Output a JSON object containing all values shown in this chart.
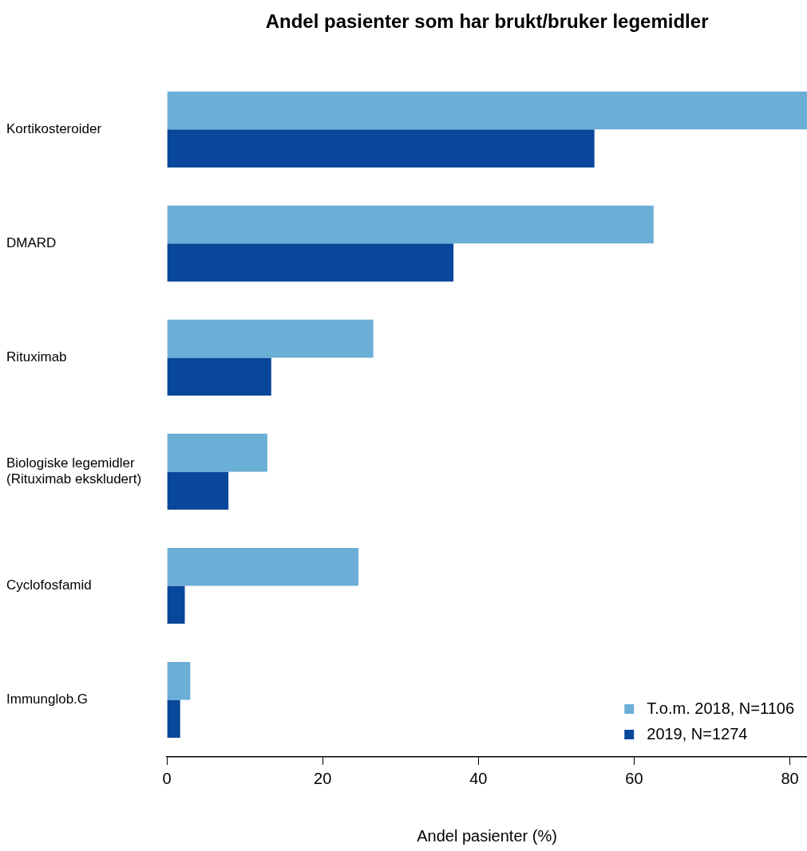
{
  "chart_data": {
    "type": "bar",
    "orientation": "horizontal",
    "title": "Andel pasienter som har brukt/bruker legemidler",
    "xlabel": "Andel pasienter (%)",
    "categories": [
      "Kortikosteroider",
      "DMARD",
      "Rituximab",
      "Biologiske legemidler \n(Rituximab ekskludert)",
      "Cyclofosfamid",
      "Immunglob.G"
    ],
    "series": [
      {
        "name": "T.o.m. 2018, N=1106",
        "color": "#6baed6",
        "values": [
          82.2,
          62.5,
          26.5,
          12.9,
          24.6,
          3.0
        ]
      },
      {
        "name": "2019, N=1274",
        "color": "#08479a",
        "values": [
          54.9,
          36.8,
          13.4,
          7.9,
          2.3,
          1.7
        ]
      }
    ],
    "xlim": [
      0,
      82.2
    ],
    "xticks": [
      0,
      20,
      40,
      60,
      80
    ],
    "grid": false,
    "legend": "bottom right"
  }
}
